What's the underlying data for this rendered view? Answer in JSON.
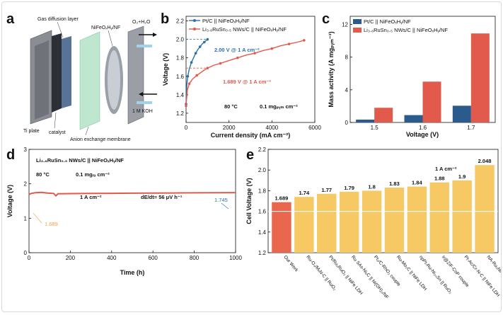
{
  "panels": {
    "a": "a",
    "b": "b",
    "c": "c",
    "d": "d",
    "e": "e"
  },
  "schematic": {
    "labels": [
      "Gas diffusion layer",
      "NiFeOₓHᵧ/NF",
      "O₂+H₂O",
      "Ti plate",
      "catalyst",
      "Anion exchange membrane",
      "1 M KOH"
    ]
  },
  "colors": {
    "blue": "#2a70ad",
    "red": "#e15a4c",
    "darkblue": "#2a5b8c",
    "orange": "#f0a34a",
    "gold": "#f7c964",
    "redbar": "#e8674e"
  },
  "chart_data": [
    {
      "id": "b",
      "type": "line",
      "title": "",
      "xlabel": "Current density (mA cm⁻²)",
      "ylabel": "Voltage (V)",
      "xlim": [
        0,
        6000
      ],
      "ylim": [
        1.1,
        2.25
      ],
      "xticks": [
        0,
        2000,
        4000,
        6000
      ],
      "yticks": [
        1.2,
        1.4,
        1.6,
        1.8,
        2.0,
        2.2
      ],
      "series": [
        {
          "name": "Pt/C || NiFeOₓHᵧ/NF",
          "color": "#2a70ad",
          "x": [
            0,
            40,
            80,
            150,
            250,
            350,
            450,
            550,
            650,
            750,
            850,
            950,
            1000
          ],
          "y": [
            1.3,
            1.52,
            1.6,
            1.68,
            1.75,
            1.8,
            1.85,
            1.89,
            1.92,
            1.95,
            1.97,
            1.99,
            2.0
          ]
        },
        {
          "name": "Li₃.₈RuSn₀.₅ NWs/C || NiFeOₓHᵧ/NF",
          "color": "#e15a4c",
          "x": [
            0,
            60,
            150,
            300,
            500,
            800,
            1000,
            1300,
            1600,
            2000,
            2400,
            2800,
            3200,
            3600,
            4000,
            4400,
            4800,
            5200,
            5500
          ],
          "y": [
            1.28,
            1.45,
            1.52,
            1.57,
            1.61,
            1.66,
            1.689,
            1.72,
            1.74,
            1.77,
            1.8,
            1.83,
            1.85,
            1.88,
            1.9,
            1.93,
            1.95,
            1.97,
            1.99
          ]
        }
      ],
      "annotations": [
        "2.00 V @ 1 A cm⁻²",
        "1.689 V @ 1 A cm⁻²",
        "80 °C",
        "0.1 mgₚᵧₘ cm⁻²"
      ]
    },
    {
      "id": "c",
      "type": "bar",
      "xlabel": "Voltage (V)",
      "ylabel": "Mass activity (A mgₚᵧₘ⁻¹)",
      "categories": [
        "1.5",
        "1.6",
        "1.7"
      ],
      "ylim": [
        0,
        13
      ],
      "yticks": [
        0,
        4,
        8,
        12
      ],
      "series": [
        {
          "name": "Pt/C || NiFeOₓHᵧ/NF",
          "color": "#2a5b8c",
          "values": [
            0.35,
            0.9,
            2.05
          ]
        },
        {
          "name": "Li₃.₈RuSn₀.₅ NWs/C || NiFeOₓHᵧ/NF",
          "color": "#e15a4c",
          "values": [
            1.8,
            5.0,
            10.9
          ]
        }
      ]
    },
    {
      "id": "d",
      "type": "line",
      "xlabel": "Time (h)",
      "ylabel": "Voltage (V)",
      "xlim": [
        0,
        1000
      ],
      "ylim": [
        0,
        3
      ],
      "xticks": [
        0,
        200,
        400,
        600,
        800,
        1000
      ],
      "yticks": [
        0,
        1,
        2,
        3
      ],
      "series": [
        {
          "name": "stability",
          "color": "#e15a4c",
          "x": [
            0,
            10,
            30,
            60,
            90,
            120,
            130,
            140,
            200,
            300,
            400,
            500,
            600,
            700,
            800,
            900,
            1000
          ],
          "y": [
            1.689,
            1.72,
            1.74,
            1.75,
            1.73,
            1.72,
            1.65,
            1.71,
            1.715,
            1.72,
            1.725,
            1.728,
            1.73,
            1.735,
            1.738,
            1.742,
            1.745
          ]
        }
      ],
      "annotations": [
        "Li₃.₈RuSn₀.₅ NWs/C || NiFeOₓHᵧ/NF",
        "80 °C",
        "0.1 mgᵣᵤ cm⁻²",
        "1 A cm⁻²",
        "dE/dt= 56 μV h⁻¹",
        "1.745",
        "1.689"
      ]
    },
    {
      "id": "e",
      "type": "bar",
      "ylabel": "Cell Voltage (V)",
      "ylim": [
        1.2,
        2.2
      ],
      "yticks": [
        1.2,
        1.4,
        1.6,
        1.8,
        2.0,
        2.2
      ],
      "categories": [
        "Our Work",
        "Ru-O₄/MₓN-C || RuO₂",
        "Pt/Ru₂RuO₂ || NiFe LDH",
        "Ru SAs-NiₒC || Ni(OH)₂/NF",
        "Pt₂/C-RhO₂ couple",
        "Ru-Mo₂C || NiFe LDH",
        "npPt₇Ru-Ni₂₀Sn || RuO₂",
        "Ir@ZIF-CoP couple",
        "Pt-Ac/Cr-N-C || NiFe LDH",
        "NA-Ru₅Ni/C couple"
      ],
      "values": [
        1.689,
        1.74,
        1.77,
        1.79,
        1.8,
        1.83,
        1.84,
        1.88,
        1.9,
        2.048
      ],
      "value_labels": [
        "1.689",
        "1.74",
        "1.77",
        "1.79",
        "1.8",
        "1.83",
        "1.84",
        "1.88",
        "1.9",
        "2.048"
      ],
      "annotations": [
        "1 A cm⁻²"
      ]
    }
  ]
}
